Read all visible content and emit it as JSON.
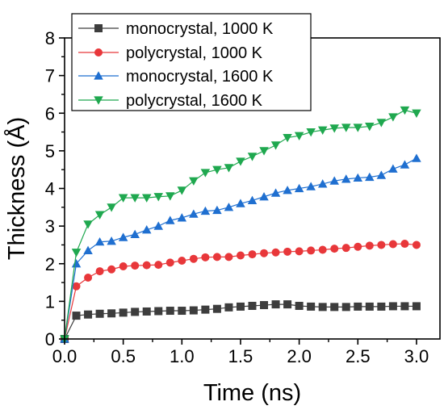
{
  "chart_data": {
    "type": "line",
    "title": "",
    "xlabel": "Time (ns)",
    "ylabel": "Thickness (Å)",
    "xlim": [
      0,
      3.2
    ],
    "ylim": [
      0,
      8
    ],
    "x_ticks": [
      0.0,
      0.5,
      1.0,
      1.5,
      2.0,
      2.5,
      3.0
    ],
    "x_tick_labels": [
      "0.0",
      "0.5",
      "1.0",
      "1.5",
      "2.0",
      "2.5",
      "3.0"
    ],
    "y_ticks": [
      0,
      1,
      2,
      3,
      4,
      5,
      6,
      7,
      8
    ],
    "y_tick_labels": [
      "0",
      "1",
      "2",
      "3",
      "4",
      "5",
      "6",
      "7",
      "8"
    ],
    "grid": false,
    "legend_position": "top-left",
    "x": [
      0.0,
      0.1,
      0.2,
      0.3,
      0.4,
      0.5,
      0.6,
      0.7,
      0.8,
      0.9,
      1.0,
      1.1,
      1.2,
      1.3,
      1.4,
      1.5,
      1.6,
      1.7,
      1.8,
      1.9,
      2.0,
      2.1,
      2.2,
      2.3,
      2.4,
      2.5,
      2.6,
      2.7,
      2.8,
      2.9,
      3.0
    ],
    "series": [
      {
        "name": "monocrystal, 1000 K",
        "color": "#3d3d3d",
        "marker": "square",
        "values": [
          0,
          0.62,
          0.65,
          0.67,
          0.68,
          0.7,
          0.72,
          0.73,
          0.74,
          0.75,
          0.75,
          0.76,
          0.78,
          0.8,
          0.84,
          0.86,
          0.88,
          0.9,
          0.92,
          0.92,
          0.88,
          0.86,
          0.85,
          0.85,
          0.85,
          0.86,
          0.86,
          0.86,
          0.87,
          0.87,
          0.87
        ]
      },
      {
        "name": "polycrystal, 1000 K",
        "color": "#e8373a",
        "marker": "circle",
        "values": [
          0,
          1.4,
          1.63,
          1.8,
          1.85,
          1.93,
          1.95,
          1.96,
          1.97,
          2.03,
          2.08,
          2.13,
          2.17,
          2.18,
          2.18,
          2.22,
          2.25,
          2.28,
          2.3,
          2.32,
          2.33,
          2.35,
          2.37,
          2.4,
          2.42,
          2.45,
          2.48,
          2.5,
          2.52,
          2.53,
          2.5
        ]
      },
      {
        "name": "monocrystal, 1600 K",
        "color": "#1f6fd0",
        "marker": "triangle-up",
        "values": [
          0,
          2.0,
          2.35,
          2.58,
          2.6,
          2.7,
          2.78,
          2.9,
          3.0,
          3.15,
          3.22,
          3.32,
          3.4,
          3.42,
          3.5,
          3.6,
          3.68,
          3.78,
          3.88,
          3.95,
          4.0,
          4.05,
          4.12,
          4.2,
          4.25,
          4.28,
          4.3,
          4.35,
          4.52,
          4.63,
          4.8
        ]
      },
      {
        "name": "polycrystal, 1600 K",
        "color": "#1fa84f",
        "marker": "triangle-down",
        "values": [
          0,
          2.3,
          3.05,
          3.3,
          3.5,
          3.75,
          3.75,
          3.75,
          3.78,
          3.8,
          3.95,
          4.2,
          4.42,
          4.5,
          4.55,
          4.72,
          4.85,
          5.0,
          5.15,
          5.35,
          5.4,
          5.5,
          5.55,
          5.6,
          5.62,
          5.62,
          5.65,
          5.75,
          5.9,
          6.08,
          6.0
        ]
      }
    ]
  }
}
